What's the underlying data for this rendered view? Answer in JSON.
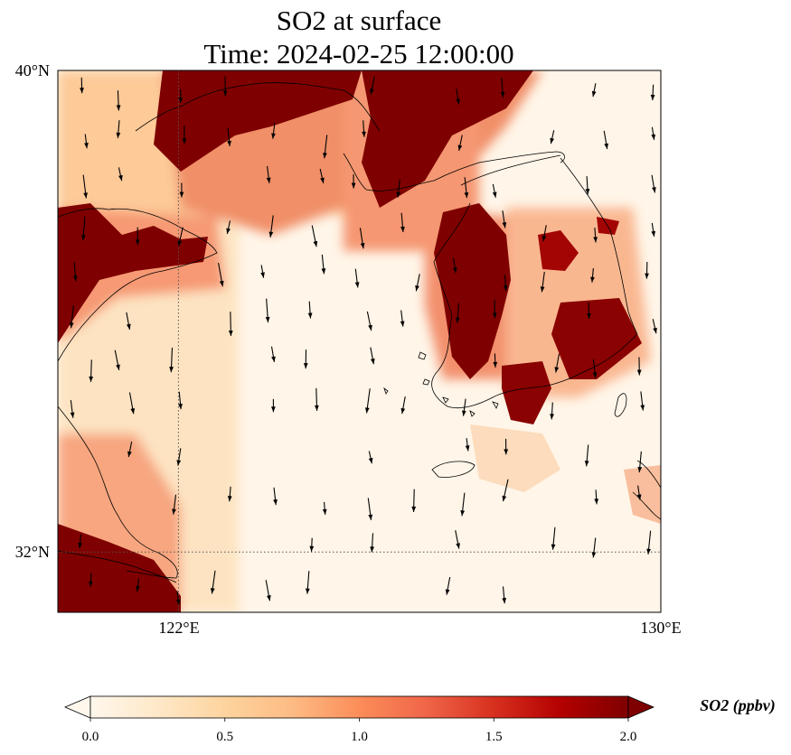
{
  "title": {
    "line1": "SO2 at surface",
    "line2": "Time: 2024-02-25 12:00:00"
  },
  "map": {
    "lon_range": [
      120,
      130
    ],
    "lat_range": [
      31,
      40
    ],
    "gridlines": {
      "lon": [
        122
      ],
      "lat": [
        32
      ],
      "style": "dotted"
    },
    "lat_labels": [
      "40°N",
      "32°N"
    ],
    "lon_labels": [
      "122°E",
      "130°E"
    ],
    "field": "SO2 surface concentration",
    "overlay": "wind vectors (arrows)",
    "colormap": "OrRd"
  },
  "colorbar": {
    "label": "SO2 (ppbv)",
    "range": [
      0.0,
      2.0
    ],
    "extend": "both",
    "ticks": [
      "0.0",
      "0.5",
      "1.0",
      "1.5",
      "2.0"
    ],
    "colors": [
      "#fff7ec",
      "#fee8c8",
      "#fdd49e",
      "#fdbb84",
      "#fc8d59",
      "#ef6548",
      "#d7301f",
      "#b30000",
      "#7f0000"
    ]
  },
  "colors": {
    "max": "#7f0000",
    "coast": "#000000",
    "grid": "#555555"
  }
}
